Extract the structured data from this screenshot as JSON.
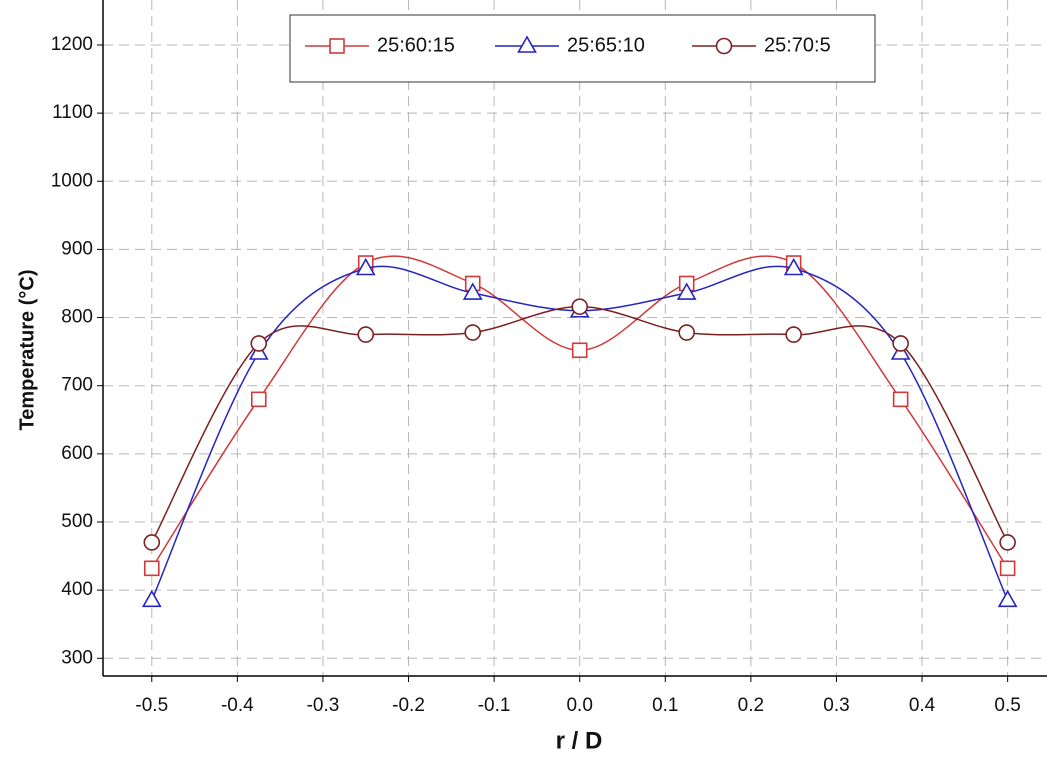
{
  "chart_data": {
    "type": "line",
    "x_label": "r / D",
    "y_label": "Temperature (°C)",
    "x": [
      -0.5,
      -0.375,
      -0.25,
      -0.125,
      0,
      0.125,
      0.25,
      0.375,
      0.5
    ],
    "series": [
      {
        "name": "25:60:15",
        "color": "#d03a3a",
        "marker": "square",
        "values": [
          432,
          680,
          880,
          850,
          752,
          850,
          880,
          680,
          432
        ]
      },
      {
        "name": "25:65:10",
        "color": "#2525c0",
        "marker": "triangle",
        "values": [
          385,
          748,
          872,
          836,
          810,
          836,
          872,
          748,
          385
        ]
      },
      {
        "name": "25:70:5",
        "color": "#7a2222",
        "marker": "circle",
        "values": [
          470,
          762,
          775,
          778,
          816,
          778,
          775,
          762,
          470
        ]
      }
    ],
    "xlim": [
      -0.557,
      0.546
    ],
    "ylim": [
      274,
      1266
    ],
    "xticks": [
      -0.5,
      -0.4,
      -0.3,
      -0.2,
      -0.1,
      {
        "value": 0,
        "label": "0.0"
      },
      0.1,
      0.2,
      0.3,
      0.4,
      0.5
    ],
    "yticks": [
      300,
      400,
      500,
      600,
      700,
      800,
      900,
      1000,
      1100,
      1200
    ],
    "grid": true,
    "smooth": true,
    "legend": "top"
  }
}
